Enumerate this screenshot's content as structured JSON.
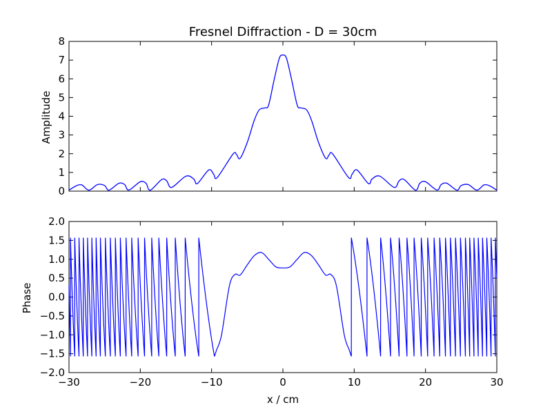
{
  "figure": {
    "title": "Fresnel Diffraction - D = 30cm",
    "line_color": "#0000ff"
  },
  "chart_data": [
    {
      "type": "line",
      "title": "Fresnel Diffraction - D = 30cm",
      "xlabel": "",
      "ylabel": "Amplitude",
      "xlim": [
        -30,
        30
      ],
      "ylim": [
        0,
        8
      ],
      "y_ticks": [
        "0",
        "1",
        "2",
        "3",
        "4",
        "5",
        "6",
        "7",
        "8"
      ],
      "x_tick_labels_shown": false,
      "grid": false,
      "series": [
        {
          "color": "#0000ff",
          "points": [
            [
              -30,
              0.05
            ],
            [
              -29,
              0.28
            ],
            [
              -28.2,
              0.33
            ],
            [
              -27.2,
              0.05
            ],
            [
              -26,
              0.35
            ],
            [
              -25,
              0.3
            ],
            [
              -24.4,
              0.05
            ],
            [
              -23,
              0.42
            ],
            [
              -22.2,
              0.35
            ],
            [
              -21.6,
              0.06
            ],
            [
              -20,
              0.5
            ],
            [
              -19.2,
              0.42
            ],
            [
              -18.6,
              0.05
            ],
            [
              -17,
              0.62
            ],
            [
              -16.3,
              0.55
            ],
            [
              -15.6,
              0.2
            ],
            [
              -13.6,
              0.8
            ],
            [
              -12.5,
              0.65
            ],
            [
              -12,
              0.4
            ],
            [
              -10.4,
              1.13
            ],
            [
              -9.7,
              0.9
            ],
            [
              -9.2,
              0.73
            ],
            [
              -7,
              1.98
            ],
            [
              -6.5,
              1.95
            ],
            [
              -6,
              1.75
            ],
            [
              -5,
              2.6
            ],
            [
              -4,
              3.8
            ],
            [
              -3.3,
              4.35
            ],
            [
              -2.5,
              4.45
            ],
            [
              -2,
              4.6
            ],
            [
              -1.2,
              6.0
            ],
            [
              -0.5,
              7.1
            ],
            [
              0,
              7.27
            ],
            [
              0.5,
              7.1
            ],
            [
              1.2,
              6.0
            ],
            [
              2,
              4.6
            ],
            [
              2.5,
              4.45
            ],
            [
              3.3,
              4.35
            ],
            [
              4,
              3.8
            ],
            [
              5,
              2.6
            ],
            [
              6,
              1.75
            ],
            [
              6.5,
              1.95
            ],
            [
              7,
              1.98
            ],
            [
              9.2,
              0.73
            ],
            [
              9.7,
              0.9
            ],
            [
              10.4,
              1.13
            ],
            [
              12,
              0.4
            ],
            [
              12.5,
              0.65
            ],
            [
              13.6,
              0.8
            ],
            [
              15.6,
              0.2
            ],
            [
              16.3,
              0.55
            ],
            [
              17,
              0.62
            ],
            [
              18.6,
              0.05
            ],
            [
              19.2,
              0.42
            ],
            [
              20,
              0.5
            ],
            [
              21.6,
              0.06
            ],
            [
              22.2,
              0.35
            ],
            [
              23,
              0.42
            ],
            [
              24.4,
              0.05
            ],
            [
              25,
              0.3
            ],
            [
              26,
              0.35
            ],
            [
              27.2,
              0.05
            ],
            [
              28.2,
              0.33
            ],
            [
              29,
              0.28
            ],
            [
              30,
              0.05
            ]
          ]
        }
      ]
    },
    {
      "type": "line",
      "title": "",
      "xlabel": "x / cm",
      "ylabel": "Phase",
      "xlim": [
        -30,
        30
      ],
      "ylim": [
        -2.0,
        2.0
      ],
      "x_ticks": [
        "−30",
        "−20",
        "−10",
        "0",
        "10",
        "20",
        "30"
      ],
      "y_ticks": [
        "−2.0",
        "−1.5",
        "−1.0",
        "−0.5",
        "0.0",
        "0.5",
        "1.0",
        "1.5",
        "2.0"
      ],
      "grid": false,
      "series": [
        {
          "color": "#0000ff",
          "phase_wrap_positions": [
            -29.8,
            -29.2,
            -28.6,
            -28.0,
            -27.4,
            -26.8,
            -26.2,
            -25.6,
            -24.9,
            -24.2,
            -23.5,
            -22.8,
            -22.0,
            -21.2,
            -20.3,
            -19.4,
            -18.4,
            -17.4,
            -16.3,
            -15.1,
            -13.7,
            -11.8,
            -9.6,
            9.6,
            11.8,
            13.7,
            15.1,
            16.3,
            17.4,
            18.4,
            19.4,
            20.3,
            21.2,
            22.0,
            22.8,
            23.5,
            24.2,
            24.9,
            25.6,
            26.2,
            26.8,
            27.4,
            28.0,
            28.6,
            29.2,
            29.8
          ],
          "wrap_top": 1.57,
          "wrap_bottom": -1.57,
          "central_points": [
            [
              -9.6,
              -1.57
            ],
            [
              -9.3,
              -1.4
            ],
            [
              -8.6,
              -1.0
            ],
            [
              -7.5,
              0.3
            ],
            [
              -6.7,
              0.6
            ],
            [
              -6,
              0.58
            ],
            [
              -5,
              0.85
            ],
            [
              -4,
              1.1
            ],
            [
              -3,
              1.18
            ],
            [
              -2,
              1.0
            ],
            [
              -1,
              0.8
            ],
            [
              0,
              0.77
            ],
            [
              1,
              0.8
            ],
            [
              2,
              1.0
            ],
            [
              3,
              1.18
            ],
            [
              4,
              1.1
            ],
            [
              5,
              0.85
            ],
            [
              6,
              0.58
            ],
            [
              6.7,
              0.6
            ],
            [
              7.5,
              0.3
            ],
            [
              8.6,
              -1.0
            ],
            [
              9.3,
              -1.4
            ],
            [
              9.6,
              -1.57
            ]
          ]
        }
      ]
    }
  ]
}
